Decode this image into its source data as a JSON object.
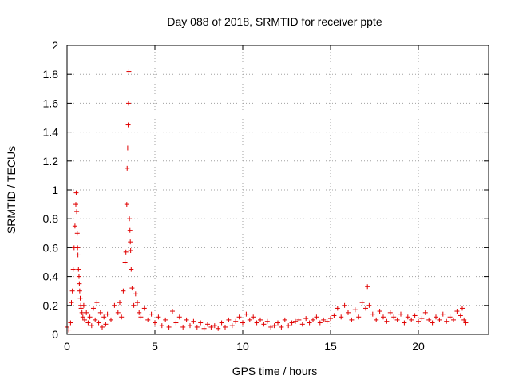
{
  "chart_data": {
    "type": "scatter",
    "title": "Day 088 of 2018, SRMTID for receiver ppte",
    "xlabel": "GPS time / hours",
    "ylabel": "SRMTID / TECUs",
    "xlim": [
      0,
      24
    ],
    "ylim": [
      0,
      2
    ],
    "xticks": [
      0,
      5,
      10,
      15,
      20
    ],
    "xtick_labels": [
      "0",
      "5",
      "10",
      "15",
      "20"
    ],
    "yticks": [
      0,
      0.2,
      0.4,
      0.6,
      0.8,
      1,
      1.2,
      1.4,
      1.6,
      1.8,
      2
    ],
    "ytick_labels": [
      "0",
      "0.2",
      "0.4",
      "0.6",
      "0.8",
      "1",
      "1.2",
      "1.4",
      "1.6",
      "1.8",
      "2"
    ],
    "grid": true,
    "marker": "+",
    "color": "#e00000",
    "series": [
      {
        "name": "SRMTID",
        "x": [
          0.0,
          0.1,
          0.2,
          0.25,
          0.3,
          0.35,
          0.4,
          0.45,
          0.5,
          0.52,
          0.55,
          0.58,
          0.6,
          0.62,
          0.65,
          0.68,
          0.7,
          0.72,
          0.75,
          0.78,
          0.8,
          0.85,
          0.9,
          0.95,
          1.0,
          1.1,
          1.2,
          1.3,
          1.4,
          1.5,
          1.6,
          1.7,
          1.8,
          1.9,
          2.0,
          2.1,
          2.2,
          2.3,
          2.5,
          2.7,
          2.9,
          3.0,
          3.1,
          3.2,
          3.3,
          3.35,
          3.4,
          3.42,
          3.45,
          3.48,
          3.5,
          3.52,
          3.55,
          3.58,
          3.6,
          3.62,
          3.65,
          3.7,
          3.8,
          3.9,
          4.0,
          4.1,
          4.2,
          4.4,
          4.6,
          4.8,
          5.0,
          5.2,
          5.4,
          5.6,
          5.8,
          6.0,
          6.2,
          6.4,
          6.6,
          6.8,
          7.0,
          7.2,
          7.4,
          7.6,
          7.8,
          8.0,
          8.2,
          8.4,
          8.6,
          8.8,
          9.0,
          9.2,
          9.4,
          9.6,
          9.8,
          10.0,
          10.2,
          10.4,
          10.6,
          10.8,
          11.0,
          11.2,
          11.4,
          11.6,
          11.8,
          12.0,
          12.2,
          12.4,
          12.6,
          12.8,
          13.0,
          13.2,
          13.4,
          13.6,
          13.8,
          14.0,
          14.2,
          14.4,
          14.6,
          14.8,
          15.0,
          15.2,
          15.4,
          15.6,
          15.8,
          16.0,
          16.2,
          16.4,
          16.6,
          16.8,
          17.0,
          17.1,
          17.2,
          17.4,
          17.6,
          17.8,
          18.0,
          18.2,
          18.4,
          18.6,
          18.8,
          19.0,
          19.2,
          19.4,
          19.6,
          19.8,
          20.0,
          20.2,
          20.4,
          20.6,
          20.8,
          21.0,
          21.2,
          21.4,
          21.6,
          21.8,
          22.0,
          22.2,
          22.4,
          22.5,
          22.6,
          22.7
        ],
        "y": [
          0.05,
          0.03,
          0.08,
          0.22,
          0.3,
          0.45,
          0.6,
          0.75,
          0.9,
          0.98,
          0.85,
          0.7,
          0.6,
          0.55,
          0.45,
          0.4,
          0.35,
          0.3,
          0.25,
          0.2,
          0.18,
          0.15,
          0.12,
          0.2,
          0.1,
          0.15,
          0.08,
          0.12,
          0.06,
          0.18,
          0.1,
          0.22,
          0.08,
          0.15,
          0.05,
          0.12,
          0.07,
          0.14,
          0.1,
          0.2,
          0.15,
          0.22,
          0.12,
          0.3,
          0.5,
          0.57,
          0.9,
          1.15,
          1.29,
          1.45,
          1.6,
          1.82,
          0.8,
          0.72,
          0.64,
          0.58,
          0.45,
          0.32,
          0.2,
          0.28,
          0.22,
          0.15,
          0.12,
          0.18,
          0.1,
          0.14,
          0.08,
          0.12,
          0.06,
          0.1,
          0.05,
          0.16,
          0.08,
          0.12,
          0.05,
          0.1,
          0.06,
          0.09,
          0.05,
          0.08,
          0.04,
          0.07,
          0.05,
          0.06,
          0.04,
          0.08,
          0.05,
          0.1,
          0.06,
          0.09,
          0.12,
          0.08,
          0.14,
          0.1,
          0.12,
          0.08,
          0.1,
          0.07,
          0.09,
          0.05,
          0.06,
          0.08,
          0.05,
          0.1,
          0.06,
          0.08,
          0.09,
          0.1,
          0.07,
          0.11,
          0.08,
          0.1,
          0.12,
          0.08,
          0.1,
          0.09,
          0.11,
          0.13,
          0.18,
          0.12,
          0.2,
          0.15,
          0.1,
          0.17,
          0.12,
          0.22,
          0.18,
          0.33,
          0.2,
          0.14,
          0.1,
          0.16,
          0.12,
          0.09,
          0.15,
          0.12,
          0.1,
          0.14,
          0.08,
          0.12,
          0.1,
          0.13,
          0.09,
          0.11,
          0.15,
          0.1,
          0.08,
          0.12,
          0.1,
          0.14,
          0.09,
          0.12,
          0.1,
          0.16,
          0.13,
          0.18,
          0.1,
          0.08
        ]
      }
    ]
  }
}
